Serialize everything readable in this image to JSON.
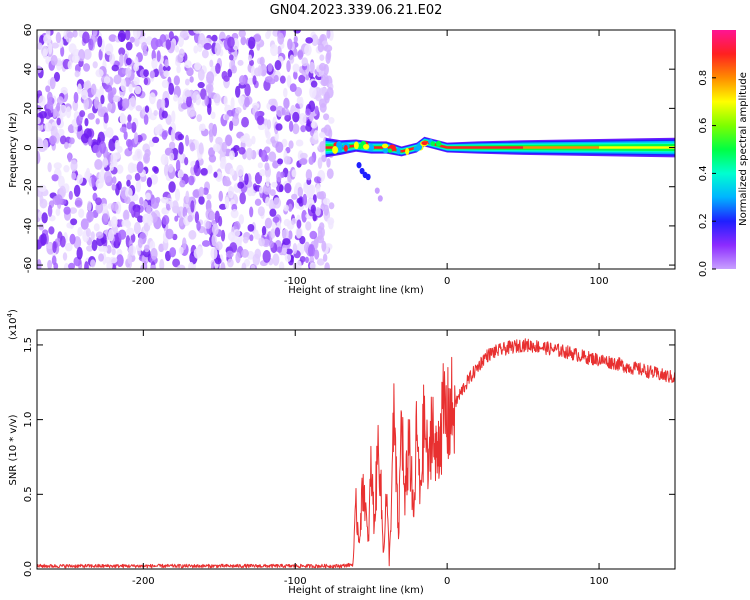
{
  "title": "GN04.2023.339.06.21.E02",
  "chart_data": [
    {
      "type": "heatmap",
      "xlabel": "Height of straight line (km)",
      "ylabel": "Frequency (Hz)",
      "xlim": [
        -270,
        150
      ],
      "ylim": [
        -62,
        60
      ],
      "xticks": [
        -200,
        -100,
        0,
        100
      ],
      "yticks": [
        60,
        40,
        20,
        0,
        -20,
        -40,
        -60
      ],
      "noise_region_x": [
        -270,
        -80
      ],
      "signal_track": {
        "x": [
          -80,
          -70,
          -60,
          -50,
          -40,
          -30,
          -20,
          -15,
          -10,
          -5,
          0,
          20,
          50,
          100,
          150
        ],
        "freq_hz": [
          0,
          0,
          1,
          0,
          0,
          -2,
          0,
          3,
          2,
          1,
          0,
          0,
          0,
          0,
          0
        ],
        "half_width_hz": [
          4,
          3,
          2.5,
          2.5,
          2.5,
          2,
          2,
          2,
          2,
          2,
          2,
          2.5,
          3,
          3.5,
          4
        ]
      },
      "grid": false,
      "colorbar": {
        "label": "Normalized spectral amplitude",
        "ticks": [
          "0.0",
          "0.2",
          "0.4",
          "0.6",
          "0.8"
        ],
        "range": [
          0,
          1
        ],
        "colors": [
          "#c8a0ff",
          "#8c2bff",
          "#1f1fff",
          "#00b4ff",
          "#00ffd0",
          "#00ff44",
          "#7dff00",
          "#ffff00",
          "#ff8c00",
          "#ff2020",
          "#ff1493"
        ]
      }
    },
    {
      "type": "line",
      "xlabel": "Height of straight line (km)",
      "ylabel": "SNR (10 * v/v)",
      "y_scale_note": "(x10",
      "y_scale_exp": "4",
      "y_scale_close": ")",
      "xlim": [
        -270,
        150
      ],
      "ylim": [
        0,
        1.6
      ],
      "xticks": [
        -200,
        -100,
        0,
        100
      ],
      "yticks": [
        "0.0",
        "0.5",
        "1.0",
        "1.5"
      ],
      "grid": false,
      "series": [
        {
          "color": "#e83030",
          "x": [
            -270,
            -250,
            -200,
            -150,
            -100,
            -70,
            -62,
            -60,
            -58,
            -55,
            -52,
            -50,
            -48,
            -45,
            -42,
            -40,
            -38,
            -35,
            -32,
            -30,
            -28,
            -25,
            -22,
            -20,
            -18,
            -15,
            -12,
            -10,
            -8,
            -5,
            -2,
            0,
            5,
            10,
            15,
            20,
            25,
            30,
            40,
            50,
            60,
            70,
            80,
            90,
            100,
            110,
            120,
            130,
            140,
            150
          ],
          "values": [
            0.02,
            0.02,
            0.02,
            0.02,
            0.02,
            0.02,
            0.03,
            0.4,
            0.2,
            0.6,
            0.15,
            0.7,
            0.3,
            0.9,
            0.1,
            0.5,
            0.05,
            1.0,
            0.2,
            1.1,
            0.4,
            0.9,
            0.3,
            0.95,
            0.5,
            1.0,
            0.6,
            1.1,
            0.7,
            0.9,
            1.05,
            1.0,
            1.1,
            1.2,
            1.28,
            1.35,
            1.42,
            1.45,
            1.48,
            1.5,
            1.49,
            1.47,
            1.45,
            1.42,
            1.4,
            1.38,
            1.35,
            1.33,
            1.3,
            1.28
          ]
        }
      ]
    }
  ]
}
